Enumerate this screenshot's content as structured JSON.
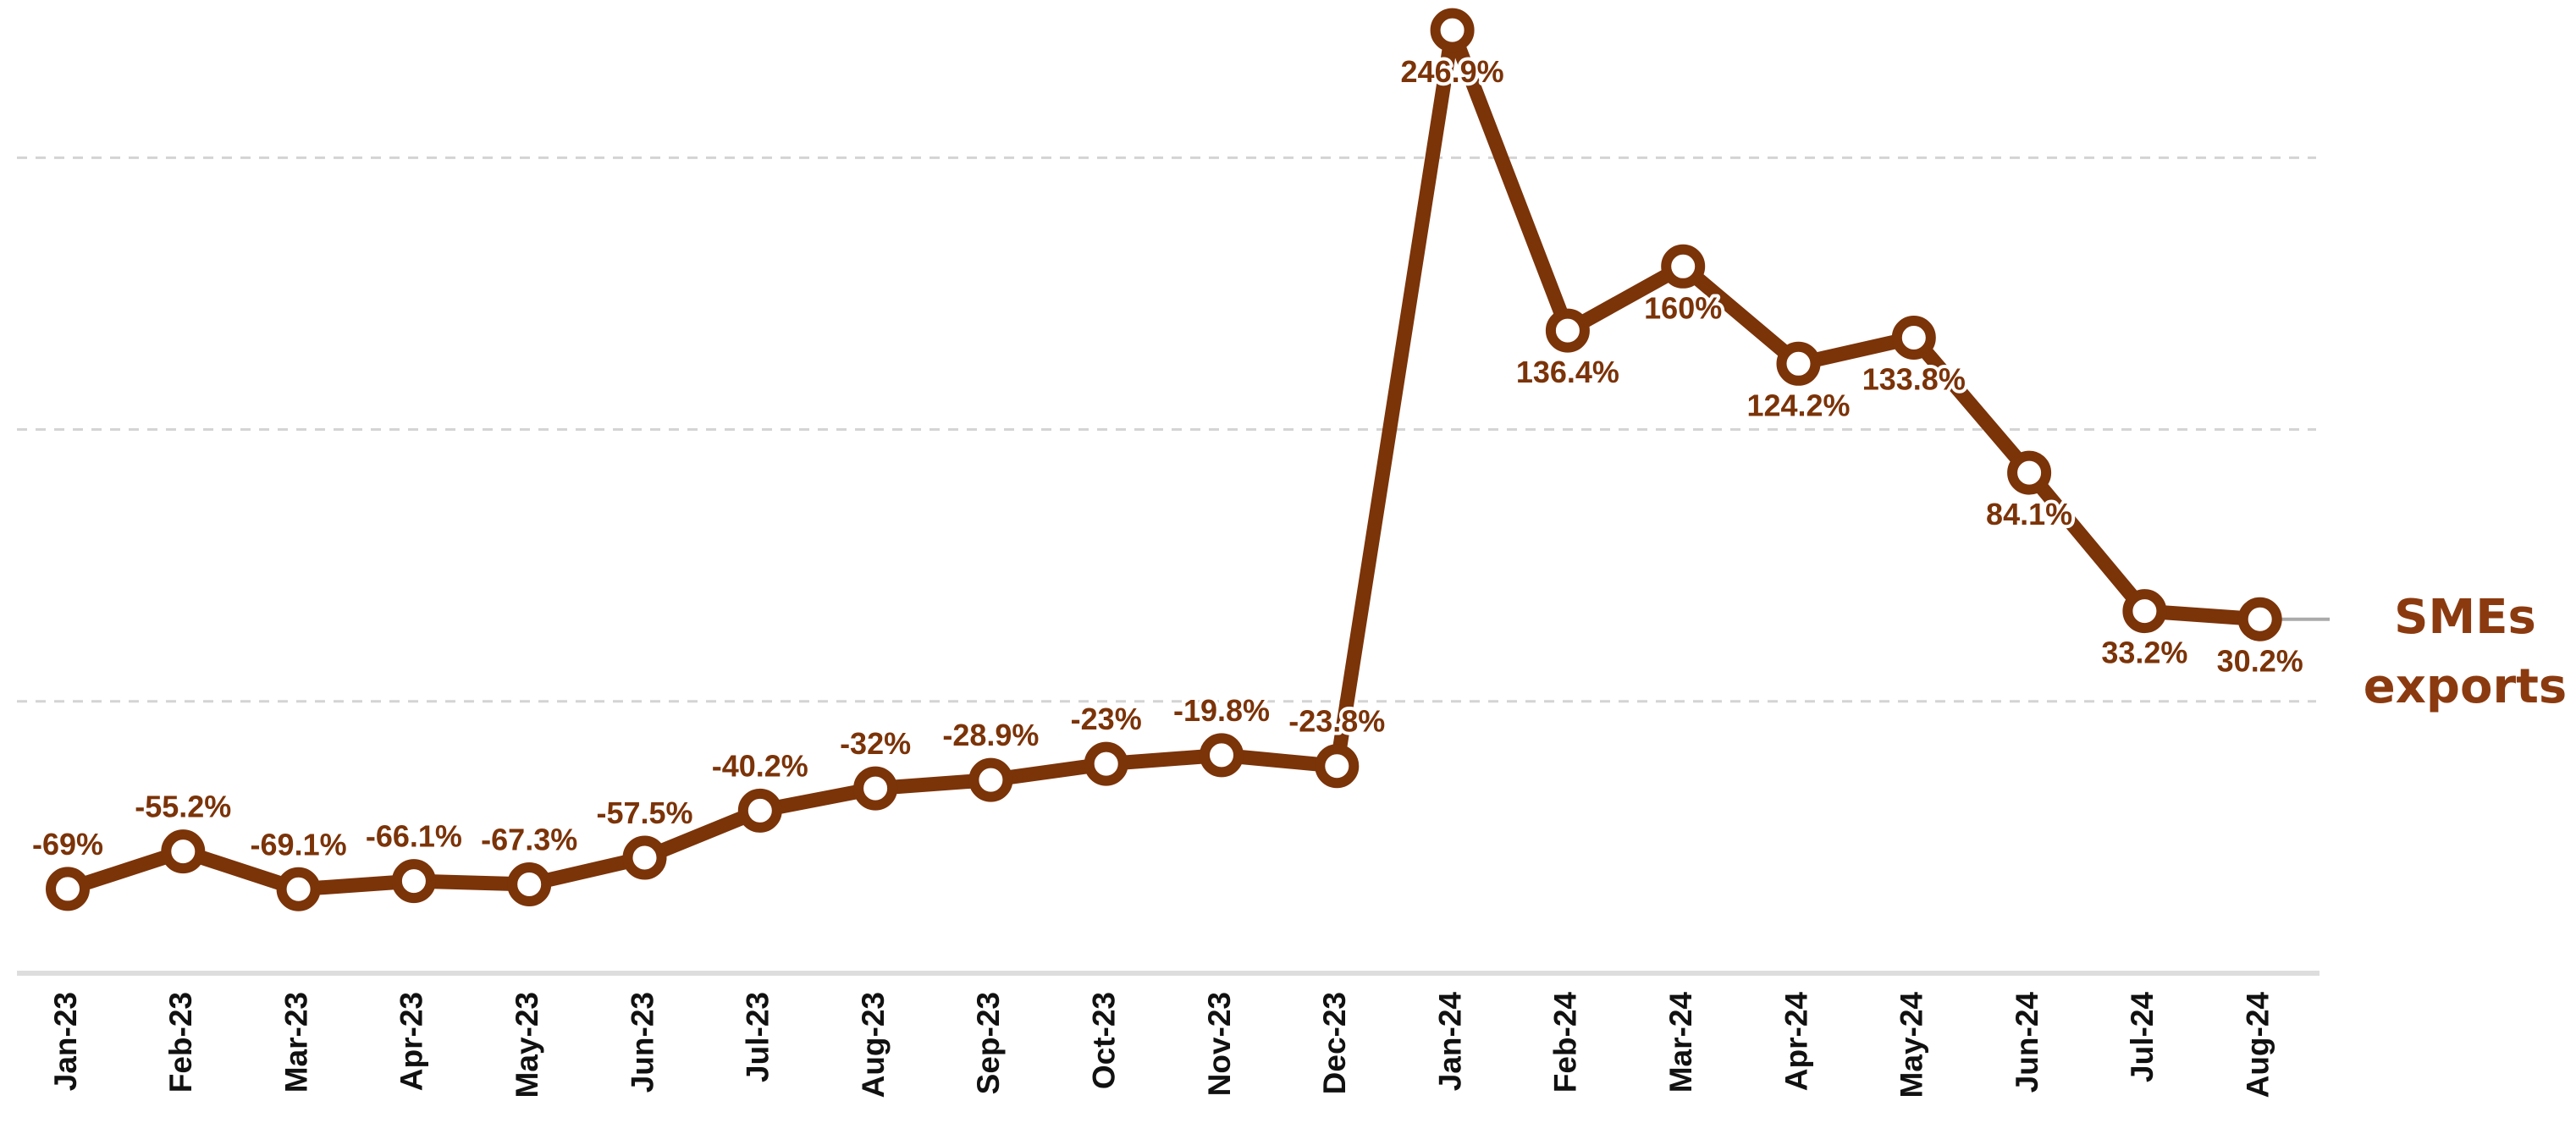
{
  "chart_data": {
    "type": "line",
    "categories": [
      "Jan-23",
      "Feb-23",
      "Mar-23",
      "Apr-23",
      "May-23",
      "Jun-23",
      "Jul-23",
      "Aug-23",
      "Sep-23",
      "Oct-23",
      "Nov-23",
      "Dec-23",
      "Jan-24",
      "Feb-24",
      "Mar-24",
      "Apr-24",
      "May-24",
      "Jun-24",
      "Jul-24",
      "Aug-24"
    ],
    "series": [
      {
        "name": "SMEs exports",
        "color": "#7b3308",
        "values": [
          -69,
          -55.2,
          -69.1,
          -66.1,
          -67.3,
          -57.5,
          -40.2,
          -32,
          -28.9,
          -23,
          -19.8,
          -23.8,
          246.9,
          136.4,
          160,
          124.2,
          133.8,
          84.1,
          33.2,
          30.2
        ],
        "value_labels": [
          "-69%",
          "-55.2%",
          "-69.1%",
          "-66.1%",
          "-67.3%",
          "-57.5%",
          "-40.2%",
          "-32%",
          "-28.9%",
          "-23%",
          "-19.8%",
          "-23.8%",
          "246.9%",
          "136.4%",
          "160%",
          "124.2%",
          "133.8%",
          "84.1%",
          "33.2%",
          "30.2%"
        ]
      }
    ],
    "ylim": [
      -100,
      258
    ],
    "yticks": [
      0,
      100,
      200
    ],
    "grid": true
  }
}
